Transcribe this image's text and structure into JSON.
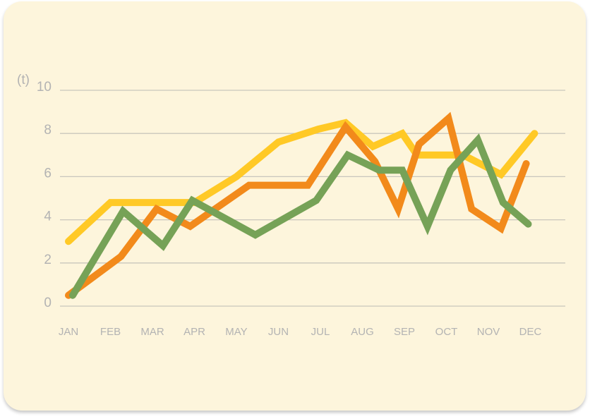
{
  "chart_data": {
    "type": "line",
    "ylabel": "(t)",
    "ylim": [
      0,
      10
    ],
    "yticks": [
      0,
      2,
      4,
      6,
      8,
      10
    ],
    "grid": true,
    "categories": [
      "JAN",
      "FEB",
      "MAR",
      "APR",
      "MAY",
      "JUN",
      "JUL",
      "AUG",
      "SEP",
      "OCT",
      "NOV",
      "DEC"
    ],
    "series": [
      {
        "color": "#ffc926",
        "points": [
          [
            0,
            3.0
          ],
          [
            1,
            4.8
          ],
          [
            2,
            4.8
          ],
          [
            3,
            4.8
          ],
          [
            4,
            6.0
          ],
          [
            5,
            7.6
          ],
          [
            5.95,
            8.2
          ],
          [
            6.6,
            8.5
          ],
          [
            7.25,
            7.4
          ],
          [
            7.95,
            8.0
          ],
          [
            8.3,
            7.0
          ],
          [
            9.0,
            7.0
          ],
          [
            9.4,
            7.0
          ],
          [
            10.3,
            6.1
          ],
          [
            11.1,
            8.0
          ]
        ]
      },
      {
        "color": "#f28a1b",
        "points": [
          [
            0,
            0.5
          ],
          [
            1.25,
            2.3
          ],
          [
            2.1,
            4.5
          ],
          [
            2.9,
            3.7
          ],
          [
            4.3,
            5.6
          ],
          [
            5.7,
            5.6
          ],
          [
            6.6,
            8.3
          ],
          [
            7.3,
            6.7
          ],
          [
            7.85,
            4.5
          ],
          [
            8.35,
            7.5
          ],
          [
            9.05,
            8.7
          ],
          [
            9.6,
            4.5
          ],
          [
            10.3,
            3.6
          ],
          [
            10.9,
            6.6
          ]
        ]
      },
      {
        "color": "#76a257",
        "points": [
          [
            0.1,
            0.5
          ],
          [
            1.3,
            4.4
          ],
          [
            2.25,
            2.8
          ],
          [
            2.95,
            4.9
          ],
          [
            4.45,
            3.3
          ],
          [
            5.9,
            4.9
          ],
          [
            6.65,
            7.0
          ],
          [
            7.4,
            6.3
          ],
          [
            7.95,
            6.3
          ],
          [
            8.55,
            3.7
          ],
          [
            9.1,
            6.3
          ],
          [
            9.75,
            7.7
          ],
          [
            10.35,
            4.8
          ],
          [
            10.95,
            3.8
          ]
        ]
      }
    ]
  }
}
